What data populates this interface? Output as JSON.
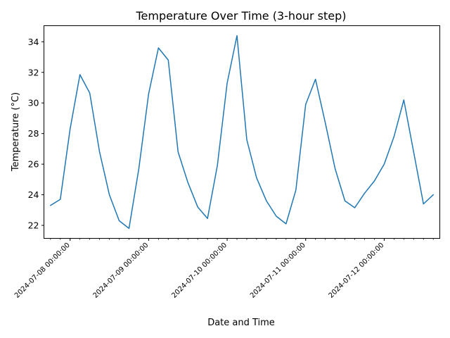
{
  "chart_data": {
    "type": "line",
    "title": "Temperature Over Time (3-hour step)",
    "xlabel": "Date and Time",
    "ylabel": "Temperature (°C)",
    "x": [
      "2024-07-07 18:00:00",
      "2024-07-07 21:00:00",
      "2024-07-08 00:00:00",
      "2024-07-08 03:00:00",
      "2024-07-08 06:00:00",
      "2024-07-08 09:00:00",
      "2024-07-08 12:00:00",
      "2024-07-08 15:00:00",
      "2024-07-08 18:00:00",
      "2024-07-08 21:00:00",
      "2024-07-09 00:00:00",
      "2024-07-09 03:00:00",
      "2024-07-09 06:00:00",
      "2024-07-09 09:00:00",
      "2024-07-09 12:00:00",
      "2024-07-09 15:00:00",
      "2024-07-09 18:00:00",
      "2024-07-09 21:00:00",
      "2024-07-10 00:00:00",
      "2024-07-10 03:00:00",
      "2024-07-10 06:00:00",
      "2024-07-10 09:00:00",
      "2024-07-10 12:00:00",
      "2024-07-10 15:00:00",
      "2024-07-10 18:00:00",
      "2024-07-10 21:00:00",
      "2024-07-11 00:00:00",
      "2024-07-11 03:00:00",
      "2024-07-11 06:00:00",
      "2024-07-11 09:00:00",
      "2024-07-11 12:00:00",
      "2024-07-11 15:00:00",
      "2024-07-11 18:00:00",
      "2024-07-11 21:00:00",
      "2024-07-12 00:00:00",
      "2024-07-12 03:00:00",
      "2024-07-12 06:00:00",
      "2024-07-12 09:00:00",
      "2024-07-12 12:00:00",
      "2024-07-12 15:00:00"
    ],
    "series": [
      {
        "values": [
          23.3,
          23.7,
          28.3,
          31.85,
          30.65,
          26.8,
          24.0,
          22.3,
          21.8,
          25.7,
          30.6,
          33.6,
          32.8,
          26.8,
          24.8,
          23.2,
          22.45,
          25.9,
          31.3,
          34.4,
          27.6,
          25.1,
          23.6,
          22.6,
          22.1,
          24.3,
          29.9,
          31.55,
          28.7,
          25.7,
          23.6,
          23.15,
          24.1,
          24.9,
          26.0,
          27.8,
          30.2,
          26.8,
          23.4,
          24.0
        ],
        "color": "#1f77b4"
      }
    ],
    "x_tick_labels": [
      "2024-07-08 00:00:00",
      "2024-07-09 00:00:00",
      "2024-07-10 00:00:00",
      "2024-07-11 00:00:00",
      "2024-07-12 00:00:00"
    ],
    "xlim": [
      "2024-07-07 16:00:00",
      "2024-07-12 17:00:00"
    ],
    "y_ticks": [
      22,
      24,
      26,
      28,
      30,
      32,
      34
    ],
    "ylim": [
      21.15,
      35.05
    ],
    "grid": false,
    "legend": "none"
  }
}
